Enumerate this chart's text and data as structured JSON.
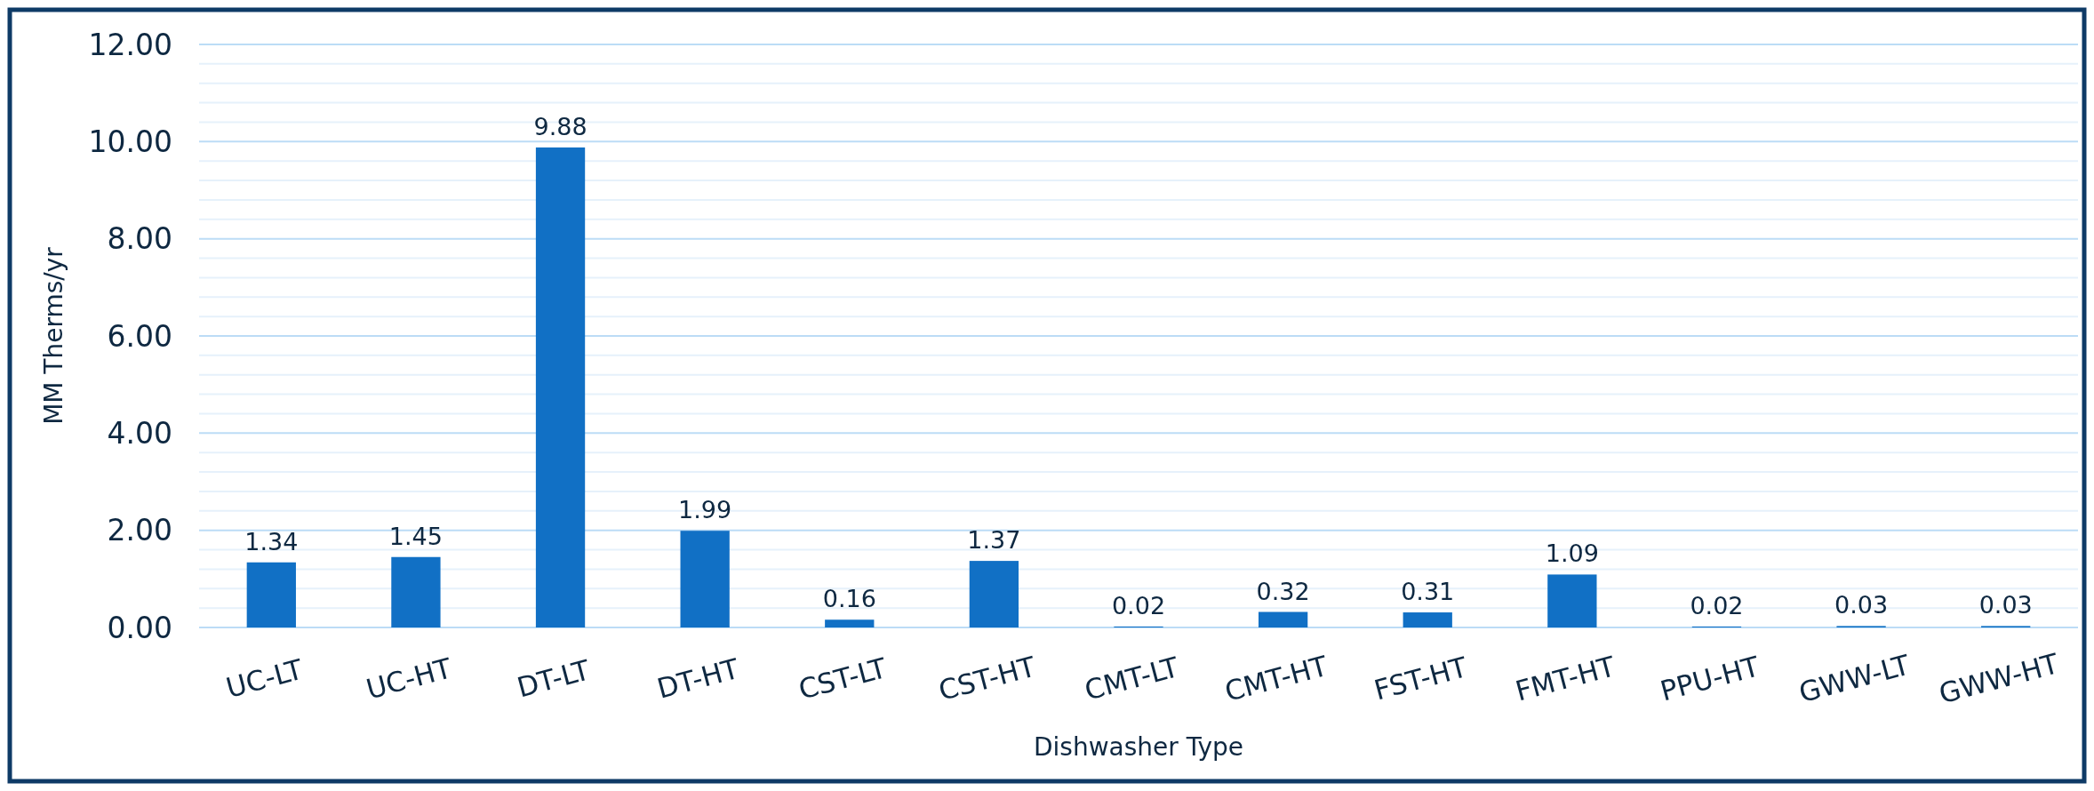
{
  "chart_data": {
    "type": "bar",
    "xlabel": "Dishwasher Type",
    "ylabel": "MM Therms/yr",
    "categories": [
      "UC-LT",
      "UC-HT",
      "DT-LT",
      "DT-HT",
      "CST-LT",
      "CST-HT",
      "CMT-LT",
      "CMT-HT",
      "FST-HT",
      "FMT-HT",
      "PPU-HT",
      "GWW-LT",
      "GWW-HT"
    ],
    "values": [
      1.34,
      1.45,
      9.88,
      1.99,
      0.16,
      1.37,
      0.02,
      0.32,
      0.31,
      1.09,
      0.02,
      0.03,
      0.03
    ],
    "color": "#1170c5",
    "data_labels": true,
    "grid": "y",
    "ylim": [
      0,
      12
    ],
    "yticks": [
      {
        "value": 0,
        "label": "0.00"
      },
      {
        "value": 0.4,
        "label": null
      },
      {
        "value": 0.8,
        "label": null
      },
      {
        "value": 1.2,
        "label": null
      },
      {
        "value": 1.6,
        "label": null
      },
      {
        "value": 2,
        "label": "2.00"
      },
      {
        "value": 2.4,
        "label": null
      },
      {
        "value": 2.8,
        "label": null
      },
      {
        "value": 3.2,
        "label": null
      },
      {
        "value": 3.6,
        "label": null
      },
      {
        "value": 4,
        "label": "4.00"
      },
      {
        "value": 4.4,
        "label": null
      },
      {
        "value": 4.8,
        "label": null
      },
      {
        "value": 5.2,
        "label": null
      },
      {
        "value": 5.6,
        "label": null
      },
      {
        "value": 6,
        "label": "6.00"
      },
      {
        "value": 6.4,
        "label": null
      },
      {
        "value": 6.8,
        "label": null
      },
      {
        "value": 7.2,
        "label": null
      },
      {
        "value": 7.6,
        "label": null
      },
      {
        "value": 8,
        "label": "8.00"
      },
      {
        "value": 8.4,
        "label": null
      },
      {
        "value": 8.8,
        "label": null
      },
      {
        "value": 9.2,
        "label": null
      },
      {
        "value": 9.6,
        "label": null
      },
      {
        "value": 10,
        "label": "10.00"
      },
      {
        "value": 10.4,
        "label": null
      },
      {
        "value": 10.8,
        "label": null
      },
      {
        "value": 11.2,
        "label": null
      },
      {
        "value": 11.6,
        "label": null
      },
      {
        "value": 12,
        "label": "12.00"
      }
    ]
  }
}
